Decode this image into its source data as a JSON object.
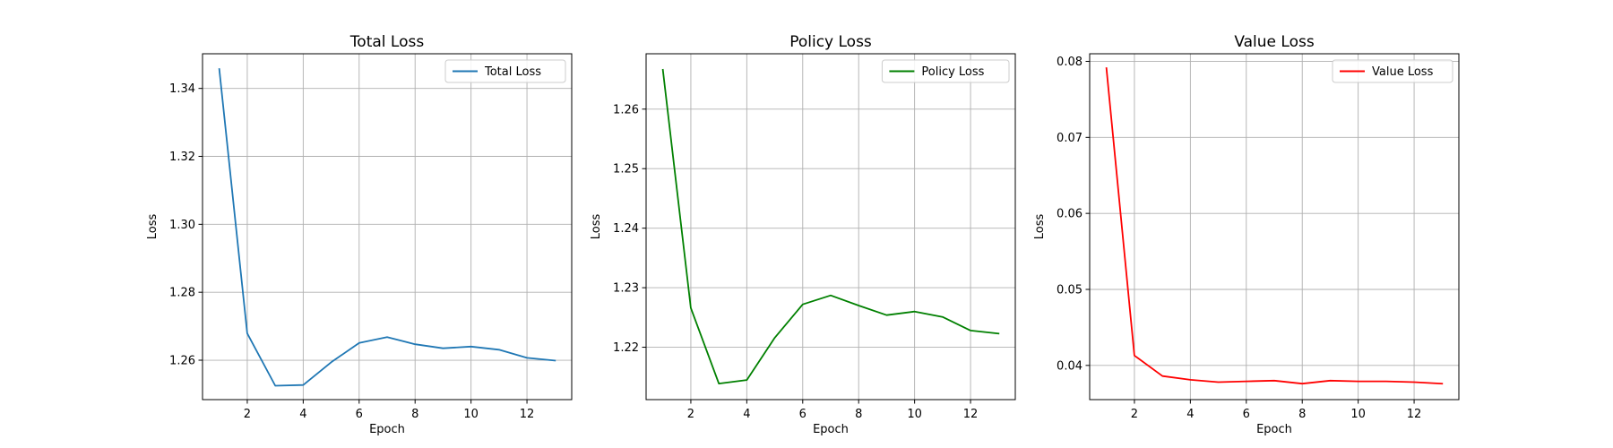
{
  "chart_data": [
    {
      "type": "line",
      "title": "Total Loss",
      "xlabel": "Epoch",
      "ylabel": "Loss",
      "xlim": [
        0.4,
        13.6
      ],
      "ylim": [
        1.2484,
        1.3502
      ],
      "xticks": [
        2,
        4,
        6,
        8,
        10,
        12
      ],
      "yticks": [
        1.26,
        1.28,
        1.3,
        1.32,
        1.34
      ],
      "ytick_decimals": 2,
      "grid": true,
      "legend_position": "top-right",
      "series": [
        {
          "name": "Total Loss",
          "color": "#1f77b4",
          "x": [
            1,
            2,
            3,
            4,
            5,
            6,
            7,
            8,
            9,
            10,
            11,
            12,
            13
          ],
          "y": [
            1.3457,
            1.2679,
            1.2525,
            1.2527,
            1.2594,
            1.2651,
            1.2668,
            1.2647,
            1.2635,
            1.264,
            1.2631,
            1.2607,
            1.2599
          ]
        }
      ]
    },
    {
      "type": "line",
      "title": "Policy Loss",
      "xlabel": "Epoch",
      "ylabel": "Loss",
      "xlim": [
        0.4,
        13.6
      ],
      "ylim": [
        1.2112,
        1.2693
      ],
      "xticks": [
        2,
        4,
        6,
        8,
        10,
        12
      ],
      "yticks": [
        1.22,
        1.23,
        1.24,
        1.25,
        1.26
      ],
      "ytick_decimals": 2,
      "grid": true,
      "legend_position": "top-right",
      "series": [
        {
          "name": "Policy Loss",
          "color": "#008000",
          "x": [
            1,
            2,
            3,
            4,
            5,
            6,
            7,
            8,
            9,
            10,
            11,
            12,
            13
          ],
          "y": [
            1.2666,
            1.2266,
            1.2139,
            1.2145,
            1.2216,
            1.2272,
            1.2287,
            1.227,
            1.2254,
            1.226,
            1.2251,
            1.2228,
            1.2223
          ]
        }
      ]
    },
    {
      "type": "line",
      "title": "Value Loss",
      "xlabel": "Epoch",
      "ylabel": "Loss",
      "xlim": [
        0.4,
        13.6
      ],
      "ylim": [
        0.0355,
        0.081
      ],
      "xticks": [
        2,
        4,
        6,
        8,
        10,
        12
      ],
      "yticks": [
        0.04,
        0.05,
        0.06,
        0.07,
        0.08
      ],
      "ytick_decimals": 2,
      "grid": true,
      "legend_position": "top-right",
      "series": [
        {
          "name": "Value Loss",
          "color": "#ff0000",
          "x": [
            1,
            2,
            3,
            4,
            5,
            6,
            7,
            8,
            9,
            10,
            11,
            12,
            13
          ],
          "y": [
            0.0791,
            0.0413,
            0.0386,
            0.0381,
            0.0378,
            0.0379,
            0.038,
            0.0376,
            0.038,
            0.0379,
            0.0379,
            0.0378,
            0.0376
          ]
        }
      ]
    }
  ]
}
